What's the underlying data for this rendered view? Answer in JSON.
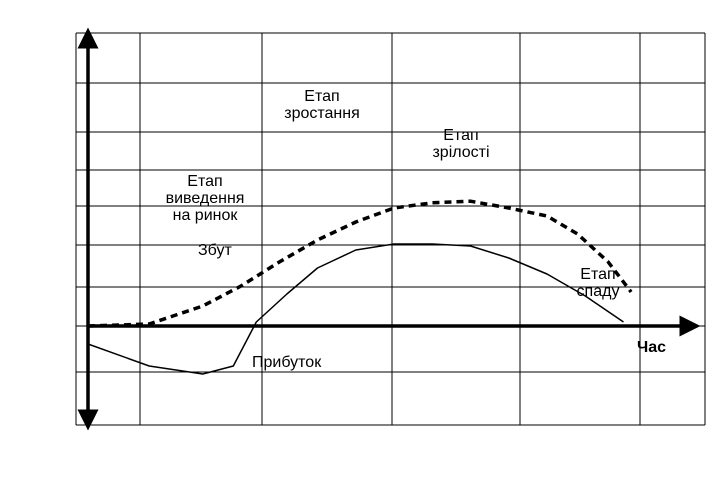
{
  "chart_data": {
    "type": "line",
    "title": "",
    "xlabel": "Час",
    "ylabel": "",
    "grid": true,
    "series": [
      {
        "name": "Збут",
        "style": "dashed",
        "color": "#000000",
        "points": [
          [
            0,
            0
          ],
          [
            0.8,
            0.05
          ],
          [
            1.5,
            0.5
          ],
          [
            2.0,
            1.0
          ],
          [
            2.5,
            1.6
          ],
          [
            3.0,
            2.15
          ],
          [
            3.5,
            2.6
          ],
          [
            4.0,
            2.95
          ],
          [
            4.5,
            3.08
          ],
          [
            5.0,
            3.12
          ],
          [
            5.5,
            2.95
          ],
          [
            6.0,
            2.75
          ],
          [
            6.4,
            2.3
          ],
          [
            6.8,
            1.6
          ],
          [
            7.1,
            0.85
          ]
        ]
      },
      {
        "name": "Прибуток",
        "style": "solid",
        "color": "#000000",
        "points": [
          [
            0,
            -0.45
          ],
          [
            0.8,
            -1.0
          ],
          [
            1.5,
            -1.2
          ],
          [
            1.9,
            -1.0
          ],
          [
            2.2,
            0.1
          ],
          [
            2.6,
            0.8
          ],
          [
            3.0,
            1.45
          ],
          [
            3.5,
            1.9
          ],
          [
            4.0,
            2.05
          ],
          [
            4.5,
            2.05
          ],
          [
            5.0,
            2.0
          ],
          [
            5.5,
            1.7
          ],
          [
            6.0,
            1.3
          ],
          [
            6.5,
            0.75
          ],
          [
            7.0,
            0.1
          ]
        ]
      }
    ],
    "annotations": [
      {
        "text": [
          "Етап",
          "виведення",
          "на ринок"
        ]
      },
      {
        "text": [
          "Етап",
          "зростання"
        ]
      },
      {
        "text": [
          "Етап",
          "зрілості"
        ]
      },
      {
        "text": [
          "Етап",
          "спаду"
        ]
      },
      {
        "text": [
          "Збут"
        ]
      },
      {
        "text": [
          "Прибуток"
        ]
      }
    ],
    "xlim": [
      0,
      8
    ],
    "ylim": [
      -2.5,
      7.5
    ]
  }
}
